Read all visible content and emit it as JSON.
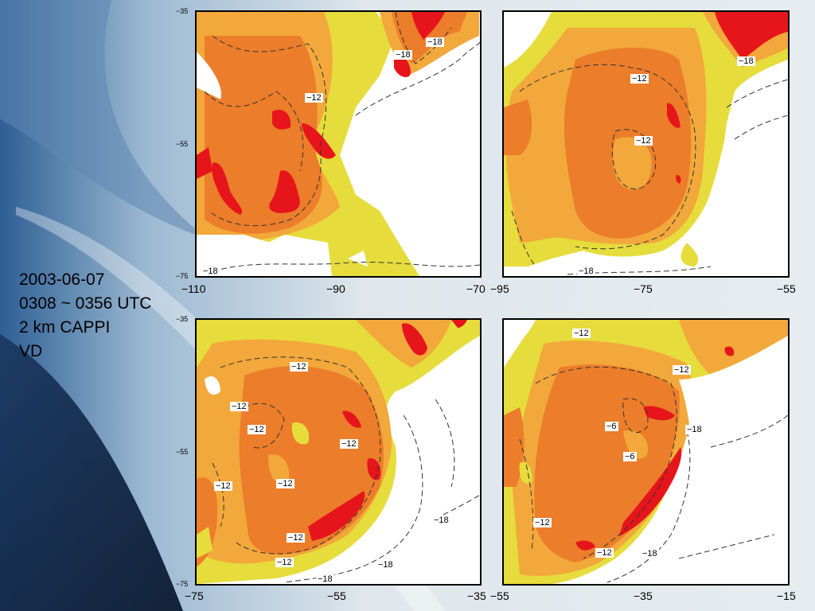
{
  "caption": {
    "date": "2003-06-07",
    "time": "0308 ~ 0356 UTC",
    "product": "2 km CAPPI",
    "field": "VD"
  },
  "colors": {
    "level_1": "#e6dc3c",
    "level_2": "#f2a83a",
    "level_3": "#ec7d2a",
    "level_4": "#e6151b",
    "contour": "#333333"
  },
  "panels": [
    {
      "id": "top-left",
      "x_ticks": [
        "−110",
        "−90",
        "−70"
      ],
      "y_ticks": [
        "−35",
        "−55",
        "−75"
      ],
      "contour_labels": [
        "−18",
        "−18",
        "−12",
        "−18"
      ]
    },
    {
      "id": "top-right",
      "x_ticks": [
        "−95",
        "−75",
        "−55"
      ],
      "y_ticks": [],
      "contour_labels": [
        "−12",
        "−12",
        "−18",
        "−18"
      ]
    },
    {
      "id": "bottom-left",
      "x_ticks": [
        "−75",
        "−55",
        "−35"
      ],
      "y_ticks": [
        "−35",
        "−55",
        "−75"
      ],
      "contour_labels": [
        "−12",
        "−12",
        "−12",
        "−12",
        "−12",
        "−12",
        "−12",
        "−12",
        "−18",
        "−18",
        "−18"
      ]
    },
    {
      "id": "bottom-right",
      "x_ticks": [
        "−55",
        "−35",
        "−15"
      ],
      "y_ticks": [],
      "contour_labels": [
        "−12",
        "−12",
        "−6",
        "−6",
        "−18",
        "−12",
        "−12",
        "−18"
      ]
    }
  ]
}
